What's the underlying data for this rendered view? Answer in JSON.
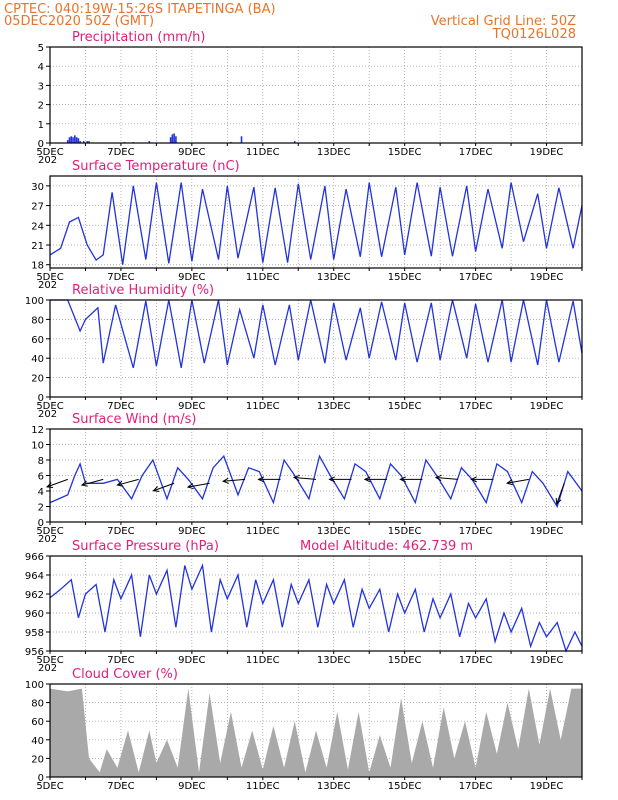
{
  "header": {
    "line1_left": "CPTEC:   040:19W-15:26S   ITAPETINGA (BA)",
    "line2_left": "05DEC2020 50Z (GMT)",
    "line2_right": "Vertical Grid Line: 50Z",
    "line3_right": "TQ0126L028"
  },
  "colors": {
    "series": "#2233dd",
    "title": "#e0207a",
    "header": "#e8742a",
    "cloud": "#a9a9a9"
  },
  "x_axis": {
    "tick_labels": [
      "5DEC",
      "7DEC",
      "9DEC",
      "11DEC",
      "13DEC",
      "15DEC",
      "17DEC",
      "19DEC"
    ],
    "year_fragment": "202"
  },
  "chart_data": [
    {
      "id": "precip",
      "type": "bar",
      "title": "Precipitation (mm/h)",
      "ylim": [
        0,
        5
      ],
      "yticks": [
        "0",
        "1",
        "2",
        "3",
        "4",
        "5"
      ],
      "x_days": [
        0.5,
        0.55,
        0.6,
        0.65,
        0.7,
        0.75,
        0.8,
        0.85,
        0.95,
        1.05,
        1.1,
        2.1,
        2.35,
        2.8,
        3.4,
        3.45,
        3.5,
        3.55,
        5.1,
        5.4,
        6.9,
        7.6
      ],
      "values": [
        0.15,
        0.3,
        0.35,
        0.3,
        0.4,
        0.3,
        0.25,
        0.1,
        0.1,
        0.1,
        0.1,
        0.05,
        0.05,
        0.1,
        0.3,
        0.45,
        0.5,
        0.35,
        0.05,
        0.35,
        0.1,
        0.05
      ]
    },
    {
      "id": "temp",
      "type": "line",
      "title": "Surface Temperature (nC)",
      "ylim": [
        17.5,
        31.5
      ],
      "yticks": [
        "18",
        "21",
        "24",
        "27",
        "30"
      ],
      "x_days": [
        0,
        0.3,
        0.55,
        0.8,
        1.05,
        1.3,
        1.5,
        1.75,
        2.05,
        2.35,
        2.7,
        3.0,
        3.35,
        3.7,
        4.0,
        4.3,
        4.75,
        5.0,
        5.3,
        5.75,
        6.0,
        6.35,
        6.7,
        7.0,
        7.35,
        7.75,
        8.0,
        8.35,
        8.75,
        9.0,
        9.35,
        9.75,
        10.0,
        10.35,
        10.75,
        11.0,
        11.35,
        11.75,
        12.0,
        12.35,
        12.75,
        13.0,
        13.35,
        13.75,
        14.0,
        14.35,
        14.75,
        15.0
      ],
      "values": [
        19.5,
        20.5,
        24.5,
        25.2,
        21,
        18.7,
        19.5,
        29,
        18,
        30,
        18.8,
        30.5,
        18.2,
        30.5,
        18.5,
        29.5,
        18.8,
        30,
        19,
        29.8,
        18.3,
        29.7,
        18.3,
        30.3,
        18.8,
        30,
        18.8,
        29.5,
        19.2,
        30.5,
        19.2,
        29.8,
        19.5,
        30.5,
        19.3,
        29.8,
        19.3,
        30,
        20,
        29.5,
        20.5,
        30.5,
        21.5,
        28.8,
        20.5,
        29.7,
        20.5,
        27
      ]
    },
    {
      "id": "rh",
      "type": "line",
      "title": "Relative Humidity (%)",
      "ylim": [
        0,
        100
      ],
      "yticks": [
        "0",
        "20",
        "40",
        "60",
        "80",
        "100"
      ],
      "x_days": [
        0,
        0.5,
        0.85,
        1.0,
        1.35,
        1.5,
        1.85,
        2.35,
        2.7,
        3.0,
        3.35,
        3.7,
        4.0,
        4.35,
        4.75,
        5.0,
        5.35,
        5.75,
        6.0,
        6.35,
        6.75,
        7.0,
        7.35,
        7.75,
        8.0,
        8.35,
        8.75,
        9.0,
        9.35,
        9.75,
        10.0,
        10.35,
        10.75,
        11.0,
        11.35,
        11.75,
        12.0,
        12.35,
        12.75,
        13.0,
        13.35,
        13.75,
        14.0,
        14.35,
        14.75,
        15.0
      ],
      "values": [
        100,
        100,
        68,
        80,
        92,
        35,
        95,
        30,
        99,
        32,
        100,
        30,
        100,
        35,
        100,
        33,
        90,
        40,
        95,
        33,
        95,
        38,
        100,
        35,
        97,
        38,
        92,
        40,
        98,
        38,
        97,
        36,
        97,
        38,
        100,
        40,
        96,
        36,
        100,
        36,
        100,
        33,
        100,
        36,
        99,
        45
      ]
    },
    {
      "id": "wind",
      "type": "line",
      "title": "Surface Wind (m/s)",
      "ylim": [
        0,
        12
      ],
      "yticks": [
        "0",
        "2",
        "4",
        "6",
        "8",
        "10",
        "12"
      ],
      "x_days": [
        0,
        0.5,
        0.7,
        0.85,
        1.0,
        1.5,
        1.9,
        2.3,
        2.6,
        2.9,
        3.3,
        3.6,
        3.9,
        4.3,
        4.6,
        4.9,
        5.3,
        5.6,
        5.9,
        6.3,
        6.6,
        6.9,
        7.3,
        7.6,
        7.9,
        8.3,
        8.6,
        8.9,
        9.3,
        9.6,
        9.9,
        10.3,
        10.6,
        10.9,
        11.3,
        11.6,
        11.9,
        12.3,
        12.6,
        12.9,
        13.3,
        13.6,
        13.9,
        14.3,
        14.6,
        15.0
      ],
      "values": [
        2.5,
        3.5,
        6,
        7.5,
        5,
        5,
        5.5,
        3,
        6,
        8,
        3,
        7,
        5.5,
        3,
        7,
        8.5,
        3.5,
        7,
        6.5,
        2.5,
        8,
        6,
        3,
        8.5,
        6,
        3,
        7.5,
        6.5,
        3,
        7.5,
        6,
        2.5,
        8,
        6,
        3,
        7,
        5.5,
        2.5,
        7.5,
        6.5,
        2.5,
        6.5,
        5,
        2,
        6.5,
        4
      ],
      "arrow_days": [
        0.5,
        1.5,
        2.5,
        3.5,
        4.5,
        5.5,
        6.5,
        7.5,
        8.5,
        9.5,
        10.5,
        11.5,
        12.5,
        13.5,
        14.5
      ],
      "arrow_speeds": [
        5.5,
        5.5,
        5.5,
        5,
        5,
        5.5,
        5.5,
        5.5,
        5.5,
        5.5,
        5.5,
        5.5,
        5.5,
        5.5,
        5
      ],
      "arrow_dirs_deg": [
        200,
        195,
        195,
        200,
        190,
        185,
        180,
        175,
        180,
        180,
        180,
        175,
        180,
        190,
        250
      ]
    },
    {
      "id": "pres",
      "type": "line",
      "title": "Surface Pressure (hPa)",
      "extra_label": "Model Altitude: 462.739 m",
      "ylim": [
        956,
        966
      ],
      "yticks": [
        "956",
        "958",
        "960",
        "962",
        "964",
        "966"
      ],
      "x_days": [
        0,
        0.3,
        0.6,
        0.8,
        1.0,
        1.3,
        1.55,
        1.8,
        2.0,
        2.3,
        2.55,
        2.8,
        3.0,
        3.3,
        3.55,
        3.8,
        4.0,
        4.3,
        4.55,
        4.8,
        5.0,
        5.3,
        5.55,
        5.8,
        6.0,
        6.3,
        6.55,
        6.8,
        7.0,
        7.3,
        7.55,
        7.8,
        8.0,
        8.3,
        8.55,
        8.8,
        9.0,
        9.3,
        9.55,
        9.8,
        10.0,
        10.3,
        10.55,
        10.8,
        11.0,
        11.3,
        11.55,
        11.8,
        12.0,
        12.3,
        12.55,
        12.8,
        13.0,
        13.3,
        13.55,
        13.8,
        14.0,
        14.3,
        14.55,
        14.8,
        15.0
      ],
      "values": [
        961.6,
        962.5,
        963.5,
        959.5,
        962,
        963,
        958,
        963.5,
        961.5,
        964,
        957.5,
        964,
        962,
        964.5,
        958.5,
        965,
        962.5,
        965,
        958,
        963.5,
        961.5,
        964,
        958.5,
        963.5,
        961,
        963.5,
        958.5,
        963,
        961,
        963.5,
        958.5,
        963,
        961,
        963.5,
        958.5,
        962.5,
        960.5,
        962.5,
        958,
        962,
        960,
        962.5,
        958,
        961.5,
        959.5,
        962,
        957.5,
        961,
        959.5,
        961.5,
        957,
        960,
        958,
        960.5,
        956.5,
        959,
        957.5,
        959,
        955.5,
        958,
        956.5
      ]
    },
    {
      "id": "cloud",
      "type": "area",
      "title": "Cloud Cover (%)",
      "ylim": [
        0,
        100
      ],
      "yticks": [
        "0",
        "20",
        "40",
        "60",
        "80",
        "100"
      ],
      "x_days": [
        0,
        0.5,
        0.9,
        1.1,
        1.4,
        1.6,
        1.9,
        2.2,
        2.5,
        2.8,
        3.0,
        3.3,
        3.6,
        3.9,
        4.2,
        4.5,
        4.8,
        5.1,
        5.4,
        5.7,
        6.0,
        6.3,
        6.6,
        6.9,
        7.2,
        7.5,
        7.8,
        8.1,
        8.4,
        8.7,
        9.0,
        9.3,
        9.6,
        9.9,
        10.2,
        10.5,
        10.8,
        11.1,
        11.4,
        11.7,
        12.0,
        12.3,
        12.6,
        12.9,
        13.2,
        13.5,
        13.8,
        14.1,
        14.4,
        14.7,
        15.0
      ],
      "values": [
        95,
        92,
        95,
        20,
        5,
        30,
        10,
        50,
        5,
        50,
        15,
        40,
        10,
        95,
        5,
        90,
        15,
        70,
        10,
        50,
        8,
        55,
        10,
        60,
        5,
        50,
        10,
        70,
        8,
        70,
        5,
        45,
        10,
        85,
        15,
        60,
        10,
        75,
        20,
        60,
        10,
        70,
        25,
        80,
        30,
        95,
        35,
        95,
        40,
        95,
        95
      ]
    }
  ]
}
